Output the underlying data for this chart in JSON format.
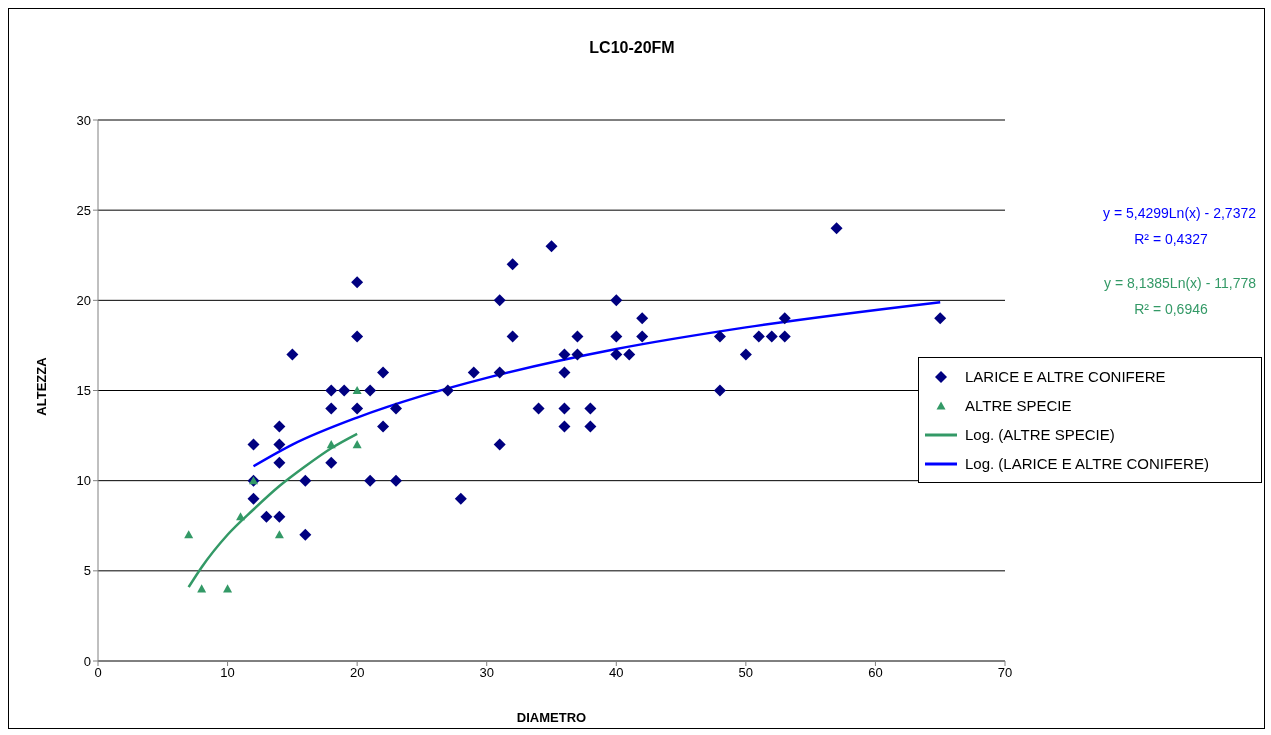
{
  "chart_data": {
    "type": "scatter",
    "title": "LC10-20FM",
    "xlabel": "DIAMETRO",
    "ylabel": "ALTEZZA",
    "xlim": [
      0,
      70
    ],
    "xticks": [
      0,
      10,
      20,
      30,
      40,
      50,
      60,
      70
    ],
    "ylim": [
      0,
      30
    ],
    "yticks": [
      0,
      5,
      10,
      15,
      20,
      25,
      30
    ],
    "grid": "y",
    "legend": "right",
    "annotations": [
      "y = 5,4299Ln(x) - 2,7372",
      "R² = 0,4327",
      "y = 8,1385Ln(x) - 11,778",
      "R² = 0,6946"
    ],
    "series": [
      {
        "name": "LARICE E ALTRE CONIFERE",
        "marker": "diamond",
        "color": "#000080",
        "x": [
          12,
          12,
          12,
          13,
          14,
          14,
          14,
          14,
          15,
          16,
          16,
          18,
          18,
          18,
          19,
          20,
          20,
          20,
          21,
          21,
          22,
          22,
          23,
          23,
          27,
          28,
          29,
          31,
          31,
          31,
          32,
          32,
          34,
          35,
          36,
          36,
          36,
          36,
          37,
          37,
          38,
          38,
          40,
          40,
          40,
          41,
          42,
          42,
          48,
          48,
          50,
          51,
          52,
          53,
          53,
          57,
          65
        ],
        "values": [
          12,
          10,
          9,
          8,
          13,
          12,
          11,
          8,
          17,
          10,
          7,
          15,
          14,
          11,
          15,
          21,
          18,
          14,
          15,
          10,
          16,
          13,
          14,
          10,
          15,
          9,
          16,
          20,
          16,
          12,
          22,
          18,
          14,
          23,
          17,
          16,
          14,
          13,
          18,
          17,
          14,
          13,
          20,
          18,
          17,
          17,
          19,
          18,
          18,
          15,
          17,
          18,
          18,
          19,
          18,
          24,
          19
        ]
      },
      {
        "name": "ALTRE SPECIE",
        "marker": "triangle",
        "color": "#339966",
        "x": [
          7,
          8,
          10,
          11,
          12,
          14,
          18,
          20,
          20
        ],
        "values": [
          7,
          4,
          4,
          8,
          10,
          7,
          12,
          15,
          12
        ]
      },
      {
        "name": "Log. (ALTRE SPECIE)",
        "type": "line",
        "marker": "none",
        "color": "#339966",
        "x": [
          7,
          8,
          10,
          12,
          14,
          16,
          18,
          20
        ],
        "values": [
          4.1,
          5.2,
          7.0,
          8.4,
          9.7,
          10.8,
          11.8,
          12.6
        ]
      },
      {
        "name": "Log. (LARICE E ALTRE CONIFERE)",
        "type": "line",
        "marker": "none",
        "color": "#0000ff",
        "x": [
          12,
          15,
          20,
          25,
          30,
          40,
          50,
          65
        ],
        "values": [
          10.8,
          12.0,
          13.5,
          14.7,
          15.7,
          17.3,
          18.5,
          19.9
        ]
      }
    ]
  }
}
